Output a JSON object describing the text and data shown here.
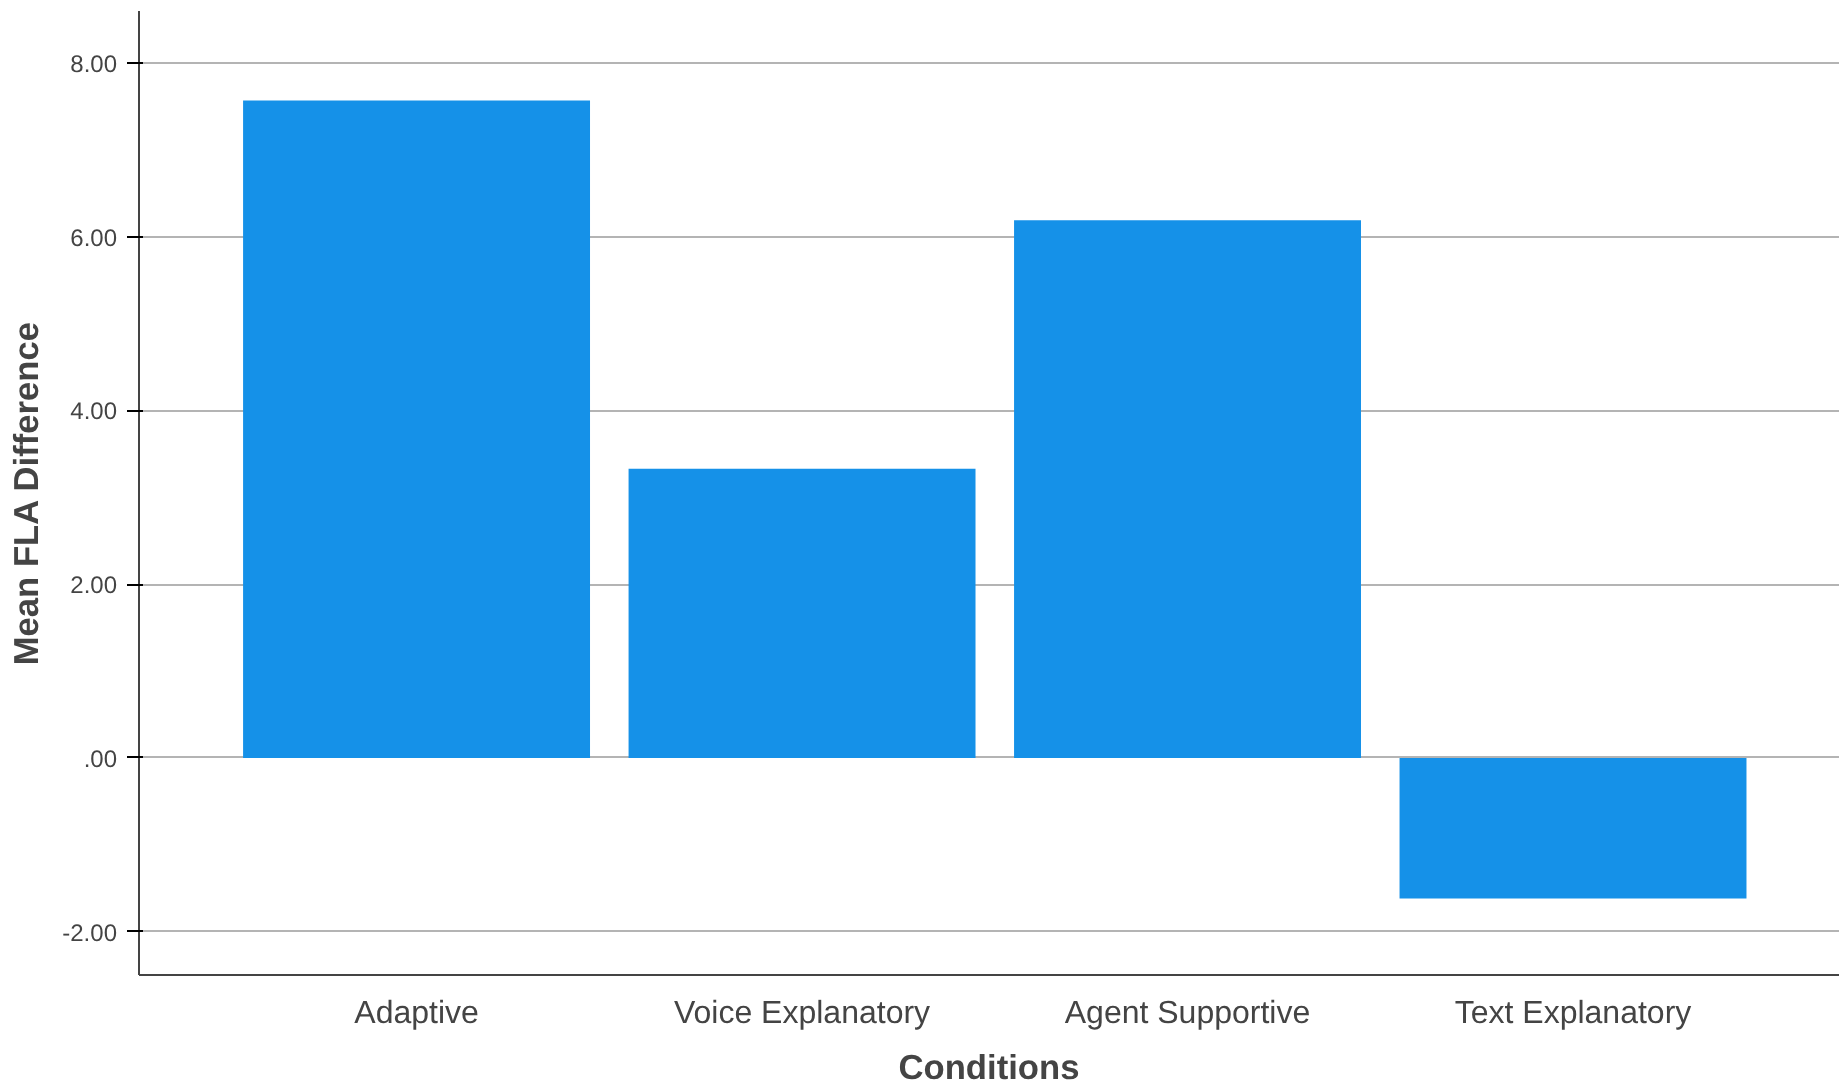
{
  "chart_data": {
    "type": "bar",
    "xlabel": "Conditions",
    "ylabel": "Mean FLA Difference",
    "categories": [
      "Adaptive",
      "Voice Explanatory",
      "Agent Supportive",
      "Text Explanatory"
    ],
    "values": [
      7.57,
      3.33,
      6.19,
      -1.62
    ],
    "color": "#1591e8",
    "ylim": [
      -2.5,
      8.6
    ],
    "yticks": [
      {
        "value": -2,
        "label": "-2.00"
      },
      {
        "value": 0,
        "label": ".00"
      },
      {
        "value": 2,
        "label": "2.00"
      },
      {
        "value": 4,
        "label": "4.00"
      },
      {
        "value": 6,
        "label": "6.00"
      },
      {
        "value": 8,
        "label": "8.00"
      }
    ],
    "grid": "y"
  }
}
